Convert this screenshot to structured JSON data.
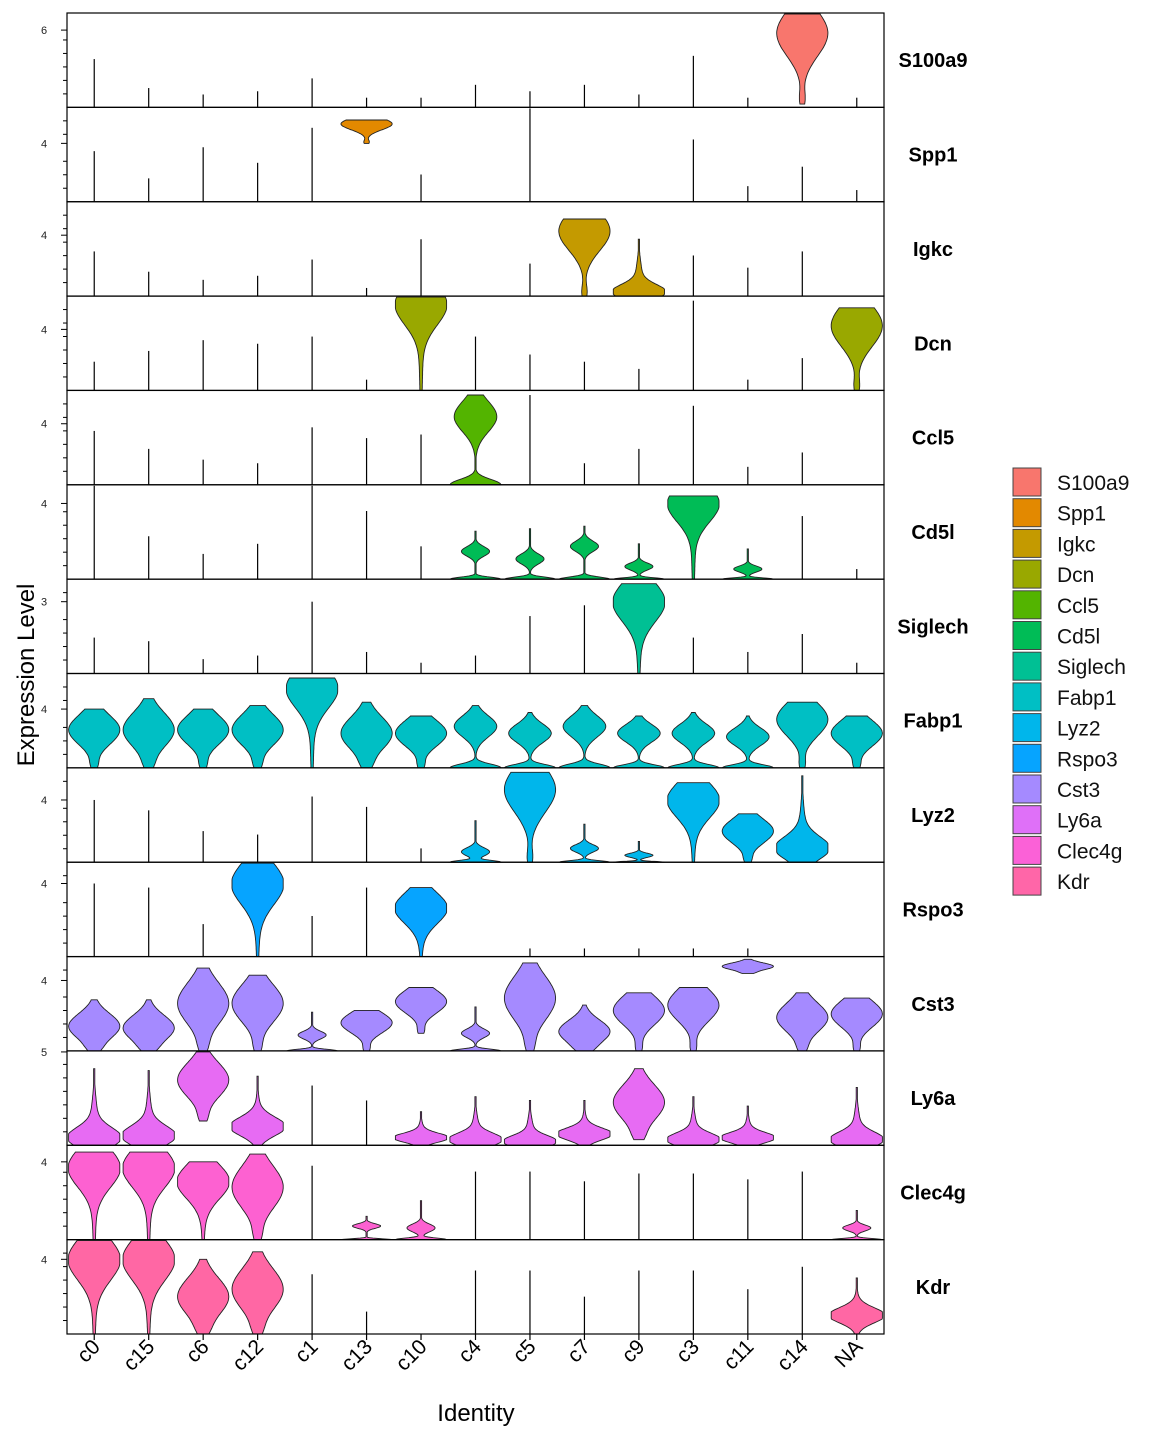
{
  "chart_data": {
    "type": "violin",
    "y_title": "Expression Level",
    "x_title": "Identity",
    "categories": [
      "c0",
      "c15",
      "c6",
      "c12",
      "c1",
      "c13",
      "c10",
      "c4",
      "c5",
      "c7",
      "c9",
      "c3",
      "c11",
      "c14",
      "NA"
    ],
    "panels": [
      {
        "gene": "S100a9",
        "color": "#F8766D",
        "tick_label": "6",
        "tick_value": 6,
        "ylim": [
          3.6,
          6.5
        ],
        "violins": [
          {
            "category": "c14",
            "min": 3.7,
            "max": 6.5,
            "peak": 5.9,
            "shape": "full"
          }
        ],
        "lines": {
          "c0": 5.1,
          "c15": 4.2,
          "c6": 4.0,
          "c12": 4.1,
          "c1": 4.5,
          "c13": 3.9,
          "c10": 3.9,
          "c4": 4.3,
          "c5": 4.1,
          "c7": 4.3,
          "c9": 4.0,
          "c3": 5.2,
          "c11": 3.9,
          "NA": 3.9
        }
      },
      {
        "gene": "Spp1",
        "color": "#E38900",
        "tick_label": "4",
        "tick_value": 4,
        "ylim": [
          2.5,
          4.9
        ],
        "violins": [
          {
            "category": "c13",
            "min": 4.0,
            "max": 4.6,
            "peak": 4.5,
            "shape": "full"
          }
        ],
        "lines": {
          "c0": 3.8,
          "c15": 3.1,
          "c6": 3.9,
          "c12": 3.5,
          "c1": 4.4,
          "c10": 3.2,
          "c5": 4.9,
          "c3": 4.1,
          "c11": 2.9,
          "c14": 3.4,
          "NA": 2.8
        }
      },
      {
        "gene": "Igkc",
        "color": "#C49A00",
        "tick_label": "4",
        "tick_value": 4,
        "ylim": [
          2.5,
          4.8
        ],
        "violins": [
          {
            "category": "c7",
            "min": 2.5,
            "max": 4.4,
            "peak": 4.1,
            "shape": "full"
          },
          {
            "category": "c9",
            "min": 2.5,
            "max": 3.9,
            "peak": 2.6,
            "shape": "bottom"
          }
        ],
        "lines": {
          "c0": 3.6,
          "c15": 3.1,
          "c6": 2.9,
          "c12": 3.0,
          "c1": 3.4,
          "c13": 2.7,
          "c10": 3.9,
          "c5": 3.3,
          "c3": 3.5,
          "c11": 3.2,
          "c14": 3.6
        }
      },
      {
        "gene": "Dcn",
        "color": "#99A800",
        "tick_label": "4",
        "tick_value": 4,
        "ylim": [
          2.3,
          4.9
        ],
        "violins": [
          {
            "category": "c10",
            "min": 2.3,
            "max": 4.9,
            "peak": 4.7,
            "shape": "top"
          },
          {
            "category": "NA",
            "min": 2.3,
            "max": 4.6,
            "peak": 4.1,
            "shape": "full"
          }
        ],
        "lines": {
          "c0": 3.1,
          "c15": 3.4,
          "c6": 3.7,
          "c12": 3.6,
          "c1": 3.8,
          "c13": 2.6,
          "c4": 3.8,
          "c5": 3.3,
          "c7": 3.1,
          "c9": 2.9,
          "c3": 4.8,
          "c11": 2.6,
          "c14": 3.2
        }
      },
      {
        "gene": "Ccl5",
        "color": "#53B400",
        "tick_label": "4",
        "tick_value": 4,
        "ylim": [
          2.3,
          4.9
        ],
        "violins": [
          {
            "category": "c4",
            "min": 2.3,
            "max": 4.8,
            "peak": 4.2,
            "shape": "topbottom"
          }
        ],
        "lines": {
          "c0": 3.8,
          "c15": 3.3,
          "c6": 3.0,
          "c12": 2.9,
          "c1": 3.9,
          "c13": 3.6,
          "c10": 3.7,
          "c5": 4.8,
          "c7": 2.9,
          "c9": 3.3,
          "c3": 4.5,
          "c11": 2.8,
          "c14": 3.2
        }
      },
      {
        "gene": "Cd5l",
        "color": "#00BC56",
        "tick_label": "4",
        "tick_value": 4,
        "ylim": [
          1.0,
          4.7
        ],
        "violins": [
          {
            "category": "c3",
            "min": 1.0,
            "max": 4.3,
            "peak": 4.0,
            "shape": "top"
          },
          {
            "category": "c4",
            "min": 1.0,
            "max": 2.9,
            "peak": 2.1,
            "shape": "spike"
          },
          {
            "category": "c5",
            "min": 1.0,
            "max": 3.0,
            "peak": 1.8,
            "shape": "spike"
          },
          {
            "category": "c7",
            "min": 1.0,
            "max": 3.1,
            "peak": 2.3,
            "shape": "spike"
          },
          {
            "category": "c9",
            "min": 1.0,
            "max": 2.4,
            "peak": 1.5,
            "shape": "spike"
          },
          {
            "category": "c11",
            "min": 1.0,
            "max": 2.2,
            "peak": 1.4,
            "shape": "spike"
          }
        ],
        "lines": {
          "c0": 4.7,
          "c15": 2.7,
          "c6": 2.0,
          "c12": 2.4,
          "c1": 4.7,
          "c13": 3.7,
          "c10": 2.3,
          "c14": 3.5,
          "NA": 1.4
        }
      },
      {
        "gene": "Siglech",
        "color": "#00C094",
        "tick_label": "3",
        "tick_value": 3,
        "ylim": [
          1.0,
          3.6
        ],
        "violins": [
          {
            "category": "c9",
            "min": 1.0,
            "max": 3.5,
            "peak": 3.0,
            "shape": "top"
          }
        ],
        "lines": {
          "c0": 2.0,
          "c15": 1.9,
          "c6": 1.4,
          "c12": 1.5,
          "c1": 3.0,
          "c13": 1.6,
          "c10": 1.3,
          "c4": 1.5,
          "c5": 2.6,
          "c7": 2.9,
          "c3": 2.0,
          "c11": 1.6,
          "c14": 2.1,
          "NA": 1.3
        }
      },
      {
        "gene": "Fabp1",
        "color": "#00BFC4",
        "tick_label": "4",
        "tick_value": 4,
        "ylim": [
          2.3,
          5.0
        ],
        "violins": [
          {
            "category": "c0",
            "min": 2.3,
            "max": 4.0,
            "peak": 3.4,
            "shape": "full"
          },
          {
            "category": "c15",
            "min": 2.3,
            "max": 4.3,
            "peak": 3.4,
            "shape": "full"
          },
          {
            "category": "c6",
            "min": 2.3,
            "max": 4.0,
            "peak": 3.4,
            "shape": "full"
          },
          {
            "category": "c12",
            "min": 2.3,
            "max": 4.1,
            "peak": 3.4,
            "shape": "full"
          },
          {
            "category": "c1",
            "min": 2.3,
            "max": 4.9,
            "peak": 4.6,
            "shape": "top"
          },
          {
            "category": "c13",
            "min": 2.3,
            "max": 4.2,
            "peak": 3.3,
            "shape": "full"
          },
          {
            "category": "c10",
            "min": 2.3,
            "max": 3.8,
            "peak": 3.3,
            "shape": "full"
          },
          {
            "category": "c4",
            "min": 2.3,
            "max": 4.1,
            "peak": 3.5,
            "shape": "topbottom"
          },
          {
            "category": "c5",
            "min": 2.3,
            "max": 3.9,
            "peak": 3.3,
            "shape": "topbottom"
          },
          {
            "category": "c7",
            "min": 2.3,
            "max": 4.1,
            "peak": 3.5,
            "shape": "topbottom"
          },
          {
            "category": "c9",
            "min": 2.3,
            "max": 3.8,
            "peak": 3.3,
            "shape": "topbottom"
          },
          {
            "category": "c3",
            "min": 2.3,
            "max": 3.9,
            "peak": 3.3,
            "shape": "topbottom"
          },
          {
            "category": "c11",
            "min": 2.3,
            "max": 3.8,
            "peak": 3.2,
            "shape": "topbottom"
          },
          {
            "category": "c14",
            "min": 2.3,
            "max": 4.2,
            "peak": 3.7,
            "shape": "full"
          },
          {
            "category": "NA",
            "min": 2.3,
            "max": 3.8,
            "peak": 3.3,
            "shape": "full"
          }
        ],
        "lines": {}
      },
      {
        "gene": "Lyz2",
        "color": "#00B6EB",
        "tick_label": "4",
        "tick_value": 4,
        "ylim": [
          2.2,
          4.9
        ],
        "violins": [
          {
            "category": "c5",
            "min": 2.2,
            "max": 4.8,
            "peak": 4.3,
            "shape": "full"
          },
          {
            "category": "c3",
            "min": 2.2,
            "max": 4.5,
            "peak": 4.0,
            "shape": "top"
          },
          {
            "category": "c11",
            "min": 2.2,
            "max": 3.6,
            "peak": 3.1,
            "shape": "full"
          },
          {
            "category": "c14",
            "min": 2.2,
            "max": 4.7,
            "peak": 2.6,
            "shape": "bottom"
          },
          {
            "category": "c4",
            "min": 2.2,
            "max": 3.4,
            "peak": 2.5,
            "shape": "spike"
          },
          {
            "category": "c7",
            "min": 2.2,
            "max": 3.3,
            "peak": 2.6,
            "shape": "spike"
          },
          {
            "category": "c9",
            "min": 2.2,
            "max": 2.8,
            "peak": 2.4,
            "shape": "spike"
          }
        ],
        "lines": {
          "c0": 4.0,
          "c15": 3.7,
          "c6": 3.1,
          "c12": 3.0,
          "c1": 4.1,
          "c13": 3.8,
          "c10": 2.6,
          "c3": 4.2
        }
      },
      {
        "gene": "Rspo3",
        "color": "#06A4FF",
        "tick_label": "4",
        "tick_value": 4,
        "ylim": [
          2.2,
          4.5
        ],
        "violins": [
          {
            "category": "c12",
            "min": 2.2,
            "max": 4.5,
            "peak": 4.0,
            "shape": "top"
          },
          {
            "category": "c10",
            "min": 2.2,
            "max": 3.9,
            "peak": 3.4,
            "shape": "top"
          }
        ],
        "lines": {
          "c0": 4.0,
          "c15": 3.9,
          "c6": 3.0,
          "c1": 3.2,
          "c13": 3.9,
          "c5": 2.4,
          "c7": 2.4,
          "c9": 2.4,
          "c3": 2.4,
          "c11": 2.4
        }
      },
      {
        "gene": "Cst3",
        "color": "#A58AFF",
        "tick_label": "4",
        "tick_value": 4,
        "ylim": [
          0.0,
          5.3
        ],
        "violins": [
          {
            "category": "c0",
            "min": 0.0,
            "max": 2.9,
            "peak": 1.4,
            "shape": "full"
          },
          {
            "category": "c15",
            "min": 0.0,
            "max": 2.9,
            "peak": 1.3,
            "shape": "full"
          },
          {
            "category": "c6",
            "min": 0.0,
            "max": 4.7,
            "peak": 2.7,
            "shape": "full"
          },
          {
            "category": "c12",
            "min": 0.0,
            "max": 4.3,
            "peak": 2.7,
            "shape": "full"
          },
          {
            "category": "c1",
            "min": 0.0,
            "max": 2.2,
            "peak": 0.9,
            "shape": "spike"
          },
          {
            "category": "c13",
            "min": 0.0,
            "max": 2.3,
            "peak": 1.6,
            "shape": "full"
          },
          {
            "category": "c10",
            "min": 1.0,
            "max": 3.6,
            "peak": 2.8,
            "shape": "full"
          },
          {
            "category": "c4",
            "min": 0.0,
            "max": 2.5,
            "peak": 1.0,
            "shape": "spike"
          },
          {
            "category": "c5",
            "min": 0.0,
            "max": 5.0,
            "peak": 3.0,
            "shape": "full"
          },
          {
            "category": "c7",
            "min": 0.0,
            "max": 2.6,
            "peak": 1.1,
            "shape": "full"
          },
          {
            "category": "c9",
            "min": 0.0,
            "max": 3.3,
            "peak": 2.3,
            "shape": "full"
          },
          {
            "category": "c3",
            "min": 0.0,
            "max": 3.6,
            "peak": 2.6,
            "shape": "full"
          },
          {
            "category": "c11",
            "min": 4.4,
            "max": 5.2,
            "peak": 4.8,
            "shape": "full"
          },
          {
            "category": "c14",
            "min": 0.0,
            "max": 3.3,
            "peak": 1.9,
            "shape": "full"
          },
          {
            "category": "NA",
            "min": 0.0,
            "max": 3.0,
            "peak": 2.1,
            "shape": "full"
          }
        ],
        "lines": {}
      },
      {
        "gene": "Ly6a",
        "color": "#E76BF3",
        "tick_label": "5",
        "tick_value": 5,
        "ylim": [
          0.0,
          5.0
        ],
        "violins": [
          {
            "category": "c0",
            "min": 0.0,
            "max": 4.1,
            "peak": 0.4,
            "shape": "bottom"
          },
          {
            "category": "c15",
            "min": 0.0,
            "max": 4.0,
            "peak": 0.5,
            "shape": "bottom"
          },
          {
            "category": "c6",
            "min": 1.3,
            "max": 5.0,
            "peak": 3.5,
            "shape": "full"
          },
          {
            "category": "c12",
            "min": 0.0,
            "max": 3.7,
            "peak": 1.0,
            "shape": "bottom"
          },
          {
            "category": "c10",
            "min": 0.0,
            "max": 1.8,
            "peak": 0.4,
            "shape": "bottom"
          },
          {
            "category": "c4",
            "min": 0.0,
            "max": 2.6,
            "peak": 0.3,
            "shape": "bottom"
          },
          {
            "category": "c5",
            "min": 0.0,
            "max": 2.4,
            "peak": 0.2,
            "shape": "bottom"
          },
          {
            "category": "c7",
            "min": 0.0,
            "max": 2.4,
            "peak": 0.6,
            "shape": "bottom"
          },
          {
            "category": "c9",
            "min": 0.3,
            "max": 4.1,
            "peak": 2.3,
            "shape": "full"
          },
          {
            "category": "c3",
            "min": 0.0,
            "max": 2.6,
            "peak": 0.3,
            "shape": "bottom"
          },
          {
            "category": "c11",
            "min": 0.0,
            "max": 2.1,
            "peak": 0.4,
            "shape": "bottom"
          },
          {
            "category": "NA",
            "min": 0.0,
            "max": 3.1,
            "peak": 0.3,
            "shape": "bottom"
          }
        ],
        "lines": {
          "c1": 3.2,
          "c13": 2.4
        }
      },
      {
        "gene": "Clec4g",
        "color": "#FD61D1",
        "tick_label": "4",
        "tick_value": 4,
        "ylim": [
          0.0,
          4.8
        ],
        "violins": [
          {
            "category": "c0",
            "min": 0.0,
            "max": 4.5,
            "peak": 3.7,
            "shape": "top"
          },
          {
            "category": "c15",
            "min": 0.0,
            "max": 4.5,
            "peak": 3.7,
            "shape": "top"
          },
          {
            "category": "c6",
            "min": 0.0,
            "max": 4.0,
            "peak": 3.0,
            "shape": "top"
          },
          {
            "category": "c12",
            "min": 0.0,
            "max": 4.4,
            "peak": 2.7,
            "shape": "full"
          },
          {
            "category": "c13",
            "min": 0.0,
            "max": 1.2,
            "peak": 0.7,
            "shape": "spike"
          },
          {
            "category": "c10",
            "min": 0.0,
            "max": 2.0,
            "peak": 0.6,
            "shape": "spike"
          },
          {
            "category": "NA",
            "min": 0.0,
            "max": 1.5,
            "peak": 0.6,
            "shape": "spike"
          }
        ],
        "lines": {
          "c1": 3.8,
          "c4": 3.5,
          "c5": 3.5,
          "c7": 3.0,
          "c9": 3.4,
          "c3": 3.4,
          "c11": 3.1,
          "c14": 3.5
        }
      },
      {
        "gene": "Kdr",
        "color": "#FF67A4",
        "tick_label": "4",
        "tick_value": 4,
        "ylim": [
          2.0,
          4.5
        ],
        "violins": [
          {
            "category": "c0",
            "min": 2.0,
            "max": 4.5,
            "peak": 4.0,
            "shape": "top"
          },
          {
            "category": "c15",
            "min": 2.0,
            "max": 4.5,
            "peak": 4.0,
            "shape": "top"
          },
          {
            "category": "c6",
            "min": 2.0,
            "max": 4.0,
            "peak": 3.0,
            "shape": "full"
          },
          {
            "category": "c12",
            "min": 2.0,
            "max": 4.2,
            "peak": 3.2,
            "shape": "full"
          },
          {
            "category": "NA",
            "min": 2.0,
            "max": 3.5,
            "peak": 2.5,
            "shape": "bottom"
          }
        ],
        "lines": {
          "c1": 3.6,
          "c13": 2.6,
          "c4": 3.7,
          "c5": 3.7,
          "c7": 3.0,
          "c9": 3.7,
          "c3": 3.7,
          "c11": 3.2,
          "c14": 3.8
        }
      }
    ],
    "legend": {
      "position": "right",
      "entries": [
        {
          "label": "S100a9",
          "color": "#F8766D"
        },
        {
          "label": "Spp1",
          "color": "#E38900"
        },
        {
          "label": "Igkc",
          "color": "#C49A00"
        },
        {
          "label": "Dcn",
          "color": "#99A800"
        },
        {
          "label": "Ccl5",
          "color": "#53B400"
        },
        {
          "label": "Cd5l",
          "color": "#00BC56"
        },
        {
          "label": "Siglech",
          "color": "#00C094"
        },
        {
          "label": "Fabp1",
          "color": "#00BFC4"
        },
        {
          "label": "Lyz2",
          "color": "#00B6EB"
        },
        {
          "label": "Rspo3",
          "color": "#06A4FF"
        },
        {
          "label": "Cst3",
          "color": "#A58AFF"
        },
        {
          "label": "Ly6a",
          "color": "#DF70F8"
        },
        {
          "label": "Clec4g",
          "color": "#FB61D7"
        },
        {
          "label": "Kdr",
          "color": "#FF66A8"
        }
      ]
    },
    "grid": false
  }
}
